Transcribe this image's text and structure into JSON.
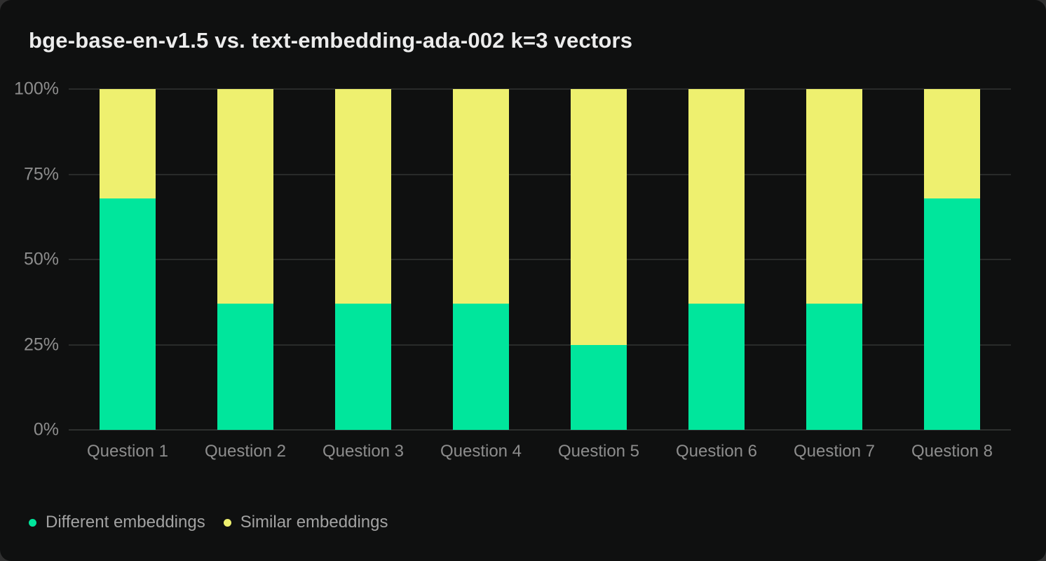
{
  "chart_data": {
    "type": "bar",
    "stacked": true,
    "title": "bge-base-en-v1.5 vs. text-embedding-ada-002 k=3 vectors",
    "categories": [
      "Question 1",
      "Question 2",
      "Question 3",
      "Question 4",
      "Question 5",
      "Question 6",
      "Question 7",
      "Question 8"
    ],
    "series": [
      {
        "name": "Different embeddings",
        "color": "#00e69c",
        "values": [
          68,
          37,
          37,
          37,
          25,
          37,
          37,
          68
        ]
      },
      {
        "name": "Similar embeddings",
        "color": "#eef06f",
        "values": [
          32,
          63,
          63,
          63,
          75,
          63,
          63,
          32
        ]
      }
    ],
    "xlabel": "",
    "ylabel": "",
    "ylim": [
      0,
      100
    ],
    "y_ticks": [
      "0%",
      "25%",
      "50%",
      "75%",
      "100%"
    ],
    "grid": true,
    "legend_position": "bottom-left"
  },
  "colors": {
    "card_background": "#0f1010",
    "page_background": "#303030",
    "title_text": "#ececec",
    "axis_text": "#8d8d8d",
    "legend_text": "#a2a2a2",
    "gridline": "#292b2a"
  }
}
